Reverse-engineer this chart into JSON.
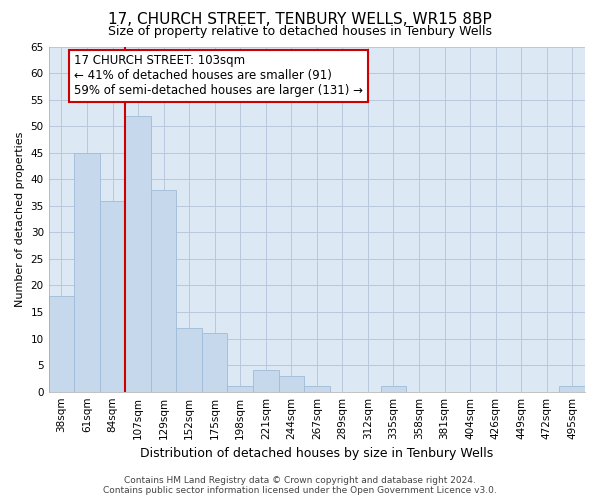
{
  "title": "17, CHURCH STREET, TENBURY WELLS, WR15 8BP",
  "subtitle": "Size of property relative to detached houses in Tenbury Wells",
  "xlabel": "Distribution of detached houses by size in Tenbury Wells",
  "ylabel": "Number of detached properties",
  "bar_labels": [
    "38sqm",
    "61sqm",
    "84sqm",
    "107sqm",
    "129sqm",
    "152sqm",
    "175sqm",
    "198sqm",
    "221sqm",
    "244sqm",
    "267sqm",
    "289sqm",
    "312sqm",
    "335sqm",
    "358sqm",
    "381sqm",
    "404sqm",
    "426sqm",
    "449sqm",
    "472sqm",
    "495sqm"
  ],
  "bar_values": [
    18,
    45,
    36,
    52,
    38,
    12,
    11,
    1,
    4,
    3,
    1,
    0,
    0,
    1,
    0,
    0,
    0,
    0,
    0,
    0,
    1
  ],
  "bar_color": "#c5d8ec",
  "bar_edge_color": "#a0bcd8",
  "background_color": "#ffffff",
  "plot_bg_color": "#dde8f5",
  "grid_color": "#b8c8dc",
  "reference_line_xindex": 3,
  "reference_line_color": "#cc0000",
  "ylim": [
    0,
    65
  ],
  "yticks": [
    0,
    5,
    10,
    15,
    20,
    25,
    30,
    35,
    40,
    45,
    50,
    55,
    60,
    65
  ],
  "annotation_line1": "17 CHURCH STREET: 103sqm",
  "annotation_line2": "← 41% of detached houses are smaller (91)",
  "annotation_line3": "59% of semi-detached houses are larger (131) →",
  "annotation_box_color": "#ffffff",
  "annotation_box_edge": "#cc0000",
  "footer_text": "Contains HM Land Registry data © Crown copyright and database right 2024.\nContains public sector information licensed under the Open Government Licence v3.0.",
  "title_fontsize": 11,
  "subtitle_fontsize": 9,
  "xlabel_fontsize": 9,
  "ylabel_fontsize": 8,
  "tick_fontsize": 7.5,
  "annotation_fontsize": 8.5,
  "footer_fontsize": 6.5
}
